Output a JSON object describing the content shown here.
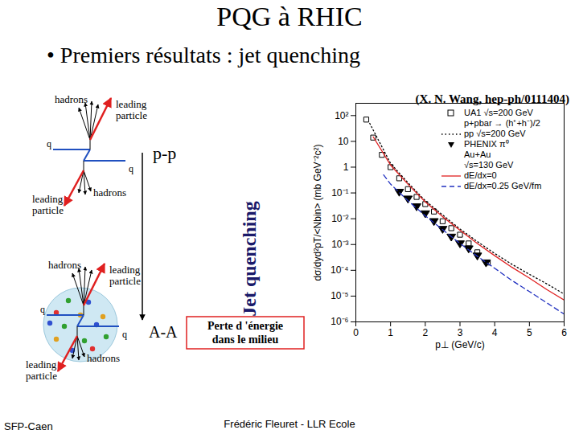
{
  "slide": {
    "title": "PQG à RHIC",
    "bullet": "• Premiers résultats : jet quenching",
    "reference": "(X. N. Wang, hep-ph/0111404)",
    "footer_left": "SFP-Caen",
    "footer_center": "Frédéric Fleuret - LLR Ecole"
  },
  "diagram": {
    "top": {
      "label": "p-p",
      "quarks": [
        "q",
        "q"
      ],
      "hadrons": "hadrons",
      "leading": "leading particle"
    },
    "bottom": {
      "label": "A-A",
      "quarks": [
        "q",
        "q"
      ],
      "hadrons": "hadrons",
      "leading": "leading particle"
    },
    "arrow_label": "Jet quenching",
    "box": [
      "Perte d 'énergie",
      "dans le milieu"
    ]
  },
  "chart_data": {
    "type": "line",
    "x_label": "p⊥ (GeV/c)",
    "y_label": "dσ/dyd²pT/<Nbin> (mb GeV⁻²c²)",
    "log": "y",
    "legend": "upper right",
    "xlim": [
      0,
      6
    ],
    "xticks": [
      0,
      1,
      2,
      3,
      4,
      5,
      6
    ],
    "ylim": [
      1e-06,
      300
    ],
    "yticks": [
      {
        "value": 100,
        "label": "10²"
      },
      10,
      1,
      {
        "value": 0.1,
        "label": "10⁻¹"
      },
      {
        "value": 0.01,
        "label": "10⁻²"
      },
      {
        "value": 0.001,
        "label": "10⁻³"
      },
      {
        "value": 0.0001,
        "label": "10⁻⁴"
      },
      {
        "value": 1e-05,
        "label": "10⁻⁵"
      },
      {
        "value": 1e-06,
        "label": "10⁻⁶"
      }
    ],
    "annotations": [
      "p+pbar → (h⁺+h⁻)/2",
      "Au+Au",
      "√s=130 GeV"
    ],
    "series": [
      {
        "name": "UA1 √s=200 GeV",
        "type": "scatter",
        "marker": "open-square",
        "color": "#000000",
        "x": [
          0.3,
          0.5,
          0.75,
          1.0,
          1.25,
          1.5,
          1.75,
          2.0,
          2.25,
          2.5,
          2.75,
          3.0,
          3.25,
          3.5,
          3.8
        ],
        "values": [
          70,
          14,
          3,
          1,
          0.37,
          0.14,
          0.07,
          0.037,
          0.019,
          0.008,
          0.0043,
          0.0024,
          0.0011,
          0.0005,
          0.0002
        ]
      },
      {
        "name": "pp √s=200 GeV",
        "type": "line",
        "line_style": "dotted",
        "color": "#000000",
        "x": [
          0.4,
          1,
          1.5,
          2,
          2.5,
          3,
          3.5,
          4,
          4.5,
          5,
          5.5,
          6
        ],
        "values": [
          50,
          1.4,
          0.25,
          0.05,
          0.014,
          0.004,
          0.0013,
          0.00045,
          0.00017,
          7e-05,
          3e-05,
          1.2e-05
        ]
      },
      {
        "name": "PHENIX π⁰",
        "type": "scatter",
        "marker": "triangle-down",
        "color": "#000000",
        "x": [
          1.25,
          1.5,
          1.75,
          2.0,
          2.25,
          2.5,
          2.75,
          3.0,
          3.25,
          3.5,
          3.75
        ],
        "values": [
          0.11,
          0.06,
          0.03,
          0.016,
          0.008,
          0.004,
          0.002,
          0.0011,
          0.0007,
          0.00037,
          0.0002
        ]
      },
      {
        "name": "dE/dx=0",
        "type": "line",
        "line_style": "solid",
        "color": "#e02020",
        "x": [
          0.5,
          1,
          1.5,
          2,
          2.5,
          3,
          3.5,
          4,
          4.5,
          5,
          5.5,
          6
        ],
        "values": [
          15,
          1.2,
          0.22,
          0.045,
          0.012,
          0.0036,
          0.0011,
          0.00037,
          0.00013,
          5e-05,
          1.8e-05,
          7e-06
        ]
      },
      {
        "name": "dE/dx=0.25 GeV/fm",
        "type": "line",
        "line_style": "dashed",
        "color": "#2030c0",
        "x": [
          0.8,
          1,
          1.5,
          2,
          2.5,
          3,
          3.5,
          4,
          4.5,
          5,
          5.5,
          6
        ],
        "values": [
          0.5,
          0.22,
          0.05,
          0.013,
          0.0038,
          0.0011,
          0.00035,
          0.00012,
          4e-05,
          1.5e-05,
          5.5e-06,
          2e-06
        ]
      }
    ]
  }
}
